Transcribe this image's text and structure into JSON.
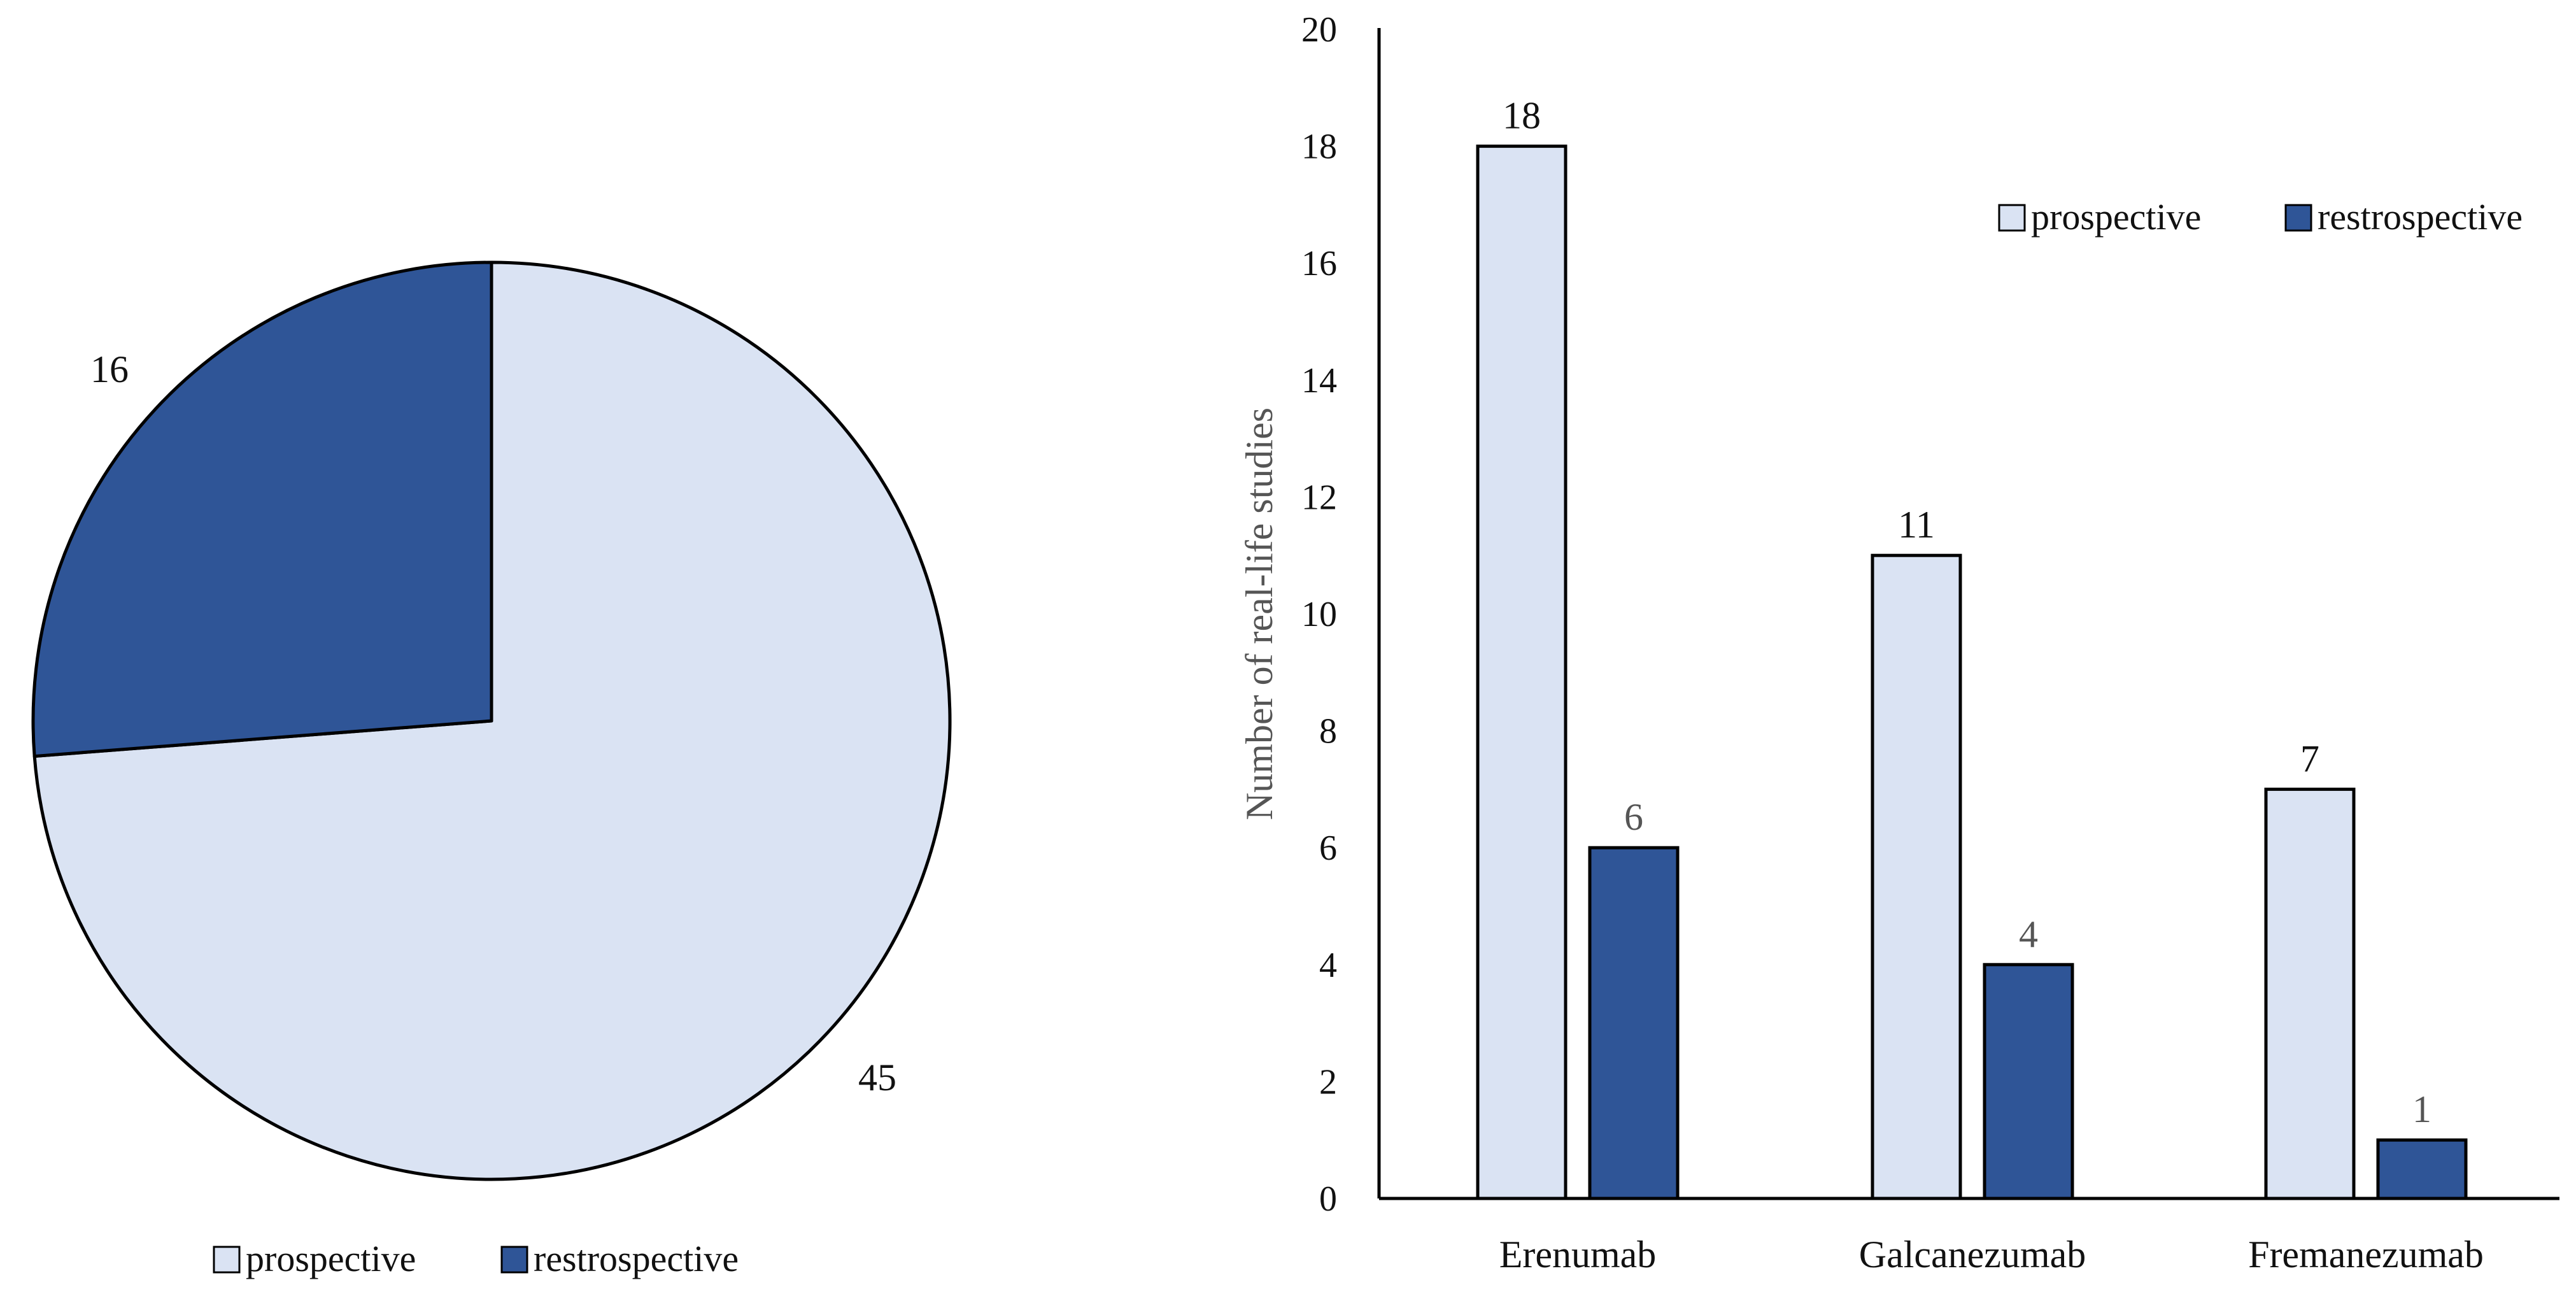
{
  "colors": {
    "prospective": "#DAE3F3",
    "retrospective": "#2F5597",
    "outline": "#000000"
  },
  "chart_data": [
    {
      "type": "pie",
      "title": "",
      "slices": [
        {
          "label": "prospective",
          "value": 45,
          "value_label": "45"
        },
        {
          "label": "restrospective",
          "value": 16,
          "value_label": "16"
        }
      ],
      "legend": {
        "placement": "bottom",
        "entries": [
          "prospective",
          "restrospective"
        ]
      }
    },
    {
      "type": "bar",
      "title": "",
      "xlabel": "",
      "ylabel": "Number of real-life studies",
      "ylim": [
        0,
        20
      ],
      "yticks": [
        0,
        2,
        4,
        6,
        8,
        10,
        12,
        14,
        16,
        18,
        20
      ],
      "categories": [
        "Erenumab",
        "Galcanezumab",
        "Fremanezumab"
      ],
      "series": [
        {
          "name": "prospective",
          "values": [
            18,
            11,
            7
          ]
        },
        {
          "name": "restrospective",
          "values": [
            6,
            4,
            1
          ]
        }
      ],
      "legend": {
        "placement": "top-right",
        "entries": [
          "prospective",
          "restrospective"
        ]
      }
    }
  ]
}
